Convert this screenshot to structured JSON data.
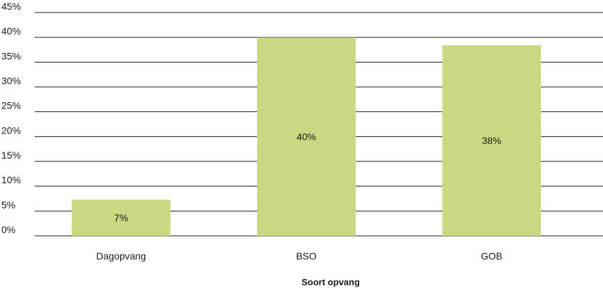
{
  "chart_data": {
    "type": "bar",
    "categories": [
      "Dagopvang",
      "BSO",
      "GOB"
    ],
    "values": [
      7.3,
      40,
      38.4
    ],
    "data_labels": [
      "7%",
      "40%",
      "38%"
    ],
    "title": "",
    "xlabel": "Soort opvang",
    "ylabel": "",
    "ylim": [
      0,
      45
    ],
    "y_ticks": [
      "0%",
      "5%",
      "10%",
      "15%",
      "20%",
      "25%",
      "30%",
      "35%",
      "40%",
      "45%"
    ],
    "grid": true,
    "legend": "none",
    "bar_color": "#c8d982"
  }
}
